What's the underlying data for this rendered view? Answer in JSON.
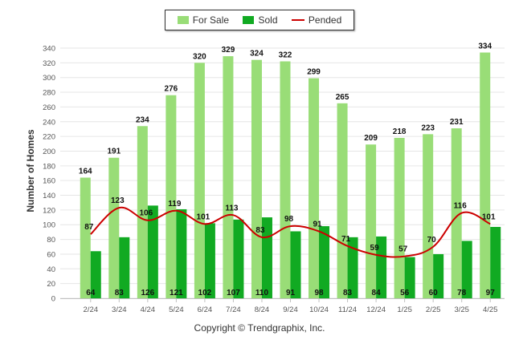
{
  "legend": {
    "for_sale": "For Sale",
    "sold": "Sold",
    "pended": "Pended"
  },
  "credit": "Copyright © Trendgraphix, Inc.",
  "colors": {
    "for_sale": "#99dd77",
    "sold": "#11aa22",
    "pended": "#cc0000",
    "grid": "#e6e6e6",
    "axis_text": "#555555",
    "label_text": "#111111"
  },
  "chart_data": {
    "type": "bar",
    "ylabel": "Number of Homes",
    "xlabel": "",
    "ylim": [
      0,
      340
    ],
    "yticks": [
      0,
      20,
      40,
      60,
      80,
      100,
      120,
      140,
      160,
      180,
      200,
      220,
      240,
      260,
      280,
      300,
      320,
      340
    ],
    "categories": [
      "2/24",
      "3/24",
      "4/24",
      "5/24",
      "6/24",
      "7/24",
      "8/24",
      "9/24",
      "10/24",
      "11/24",
      "12/24",
      "1/25",
      "2/25",
      "3/25",
      "4/25"
    ],
    "series": [
      {
        "name": "For Sale",
        "type": "bar",
        "values": [
          164,
          191,
          234,
          276,
          320,
          329,
          324,
          322,
          299,
          265,
          209,
          218,
          223,
          231,
          334
        ]
      },
      {
        "name": "Sold",
        "type": "bar",
        "values": [
          64,
          83,
          126,
          121,
          102,
          107,
          110,
          91,
          98,
          83,
          84,
          56,
          60,
          78,
          97
        ]
      },
      {
        "name": "Pended",
        "type": "line",
        "values": [
          87,
          123,
          106,
          119,
          101,
          113,
          83,
          98,
          91,
          71,
          59,
          57,
          70,
          116,
          101
        ]
      }
    ],
    "legend_position": "top",
    "grid": true
  }
}
